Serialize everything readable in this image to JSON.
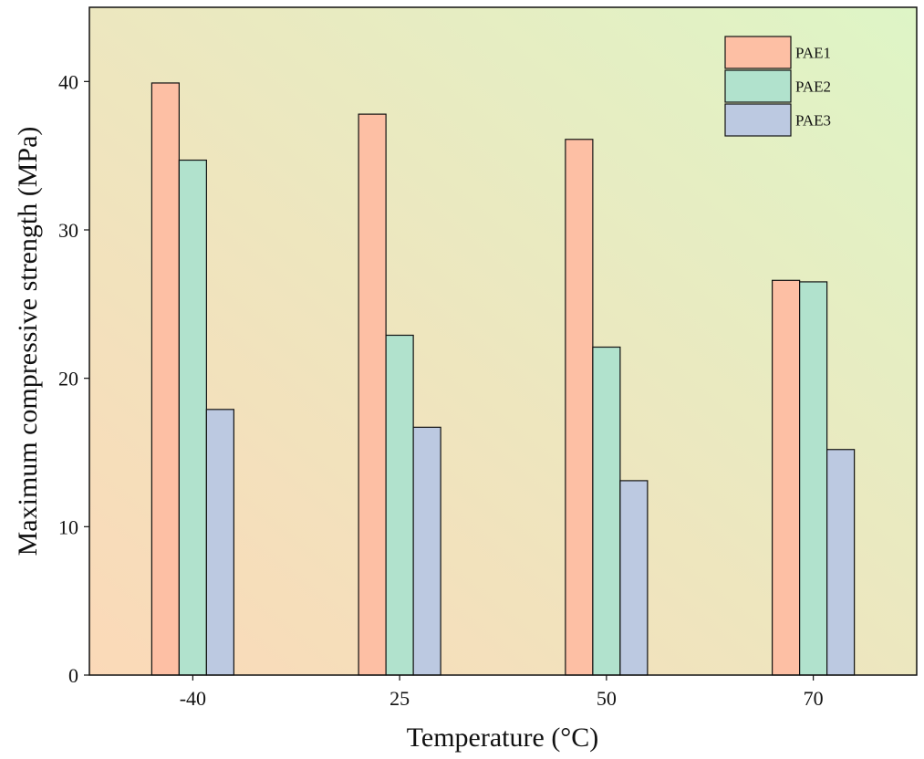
{
  "chart_data": {
    "type": "bar",
    "categories": [
      "-40",
      "25",
      "50",
      "70"
    ],
    "series": [
      {
        "name": "PAE1",
        "color": "#fdbfa4",
        "values": [
          39.9,
          37.8,
          36.1,
          26.6
        ]
      },
      {
        "name": "PAE2",
        "color": "#b1e2cd",
        "values": [
          34.7,
          22.9,
          22.1,
          26.5
        ]
      },
      {
        "name": "PAE3",
        "color": "#bcc9e1",
        "values": [
          17.9,
          16.7,
          13.1,
          15.2
        ]
      }
    ],
    "xlabel": "Temperature (°C)",
    "ylabel": "Maximum compressive strength (MPa)",
    "ylim": [
      0,
      45
    ],
    "yticks": [
      "0",
      "10",
      "20",
      "30",
      "40"
    ],
    "legend_position": "top-right",
    "grid": false,
    "background_gradient": [
      "#fbd9b8",
      "#def5c6"
    ]
  }
}
